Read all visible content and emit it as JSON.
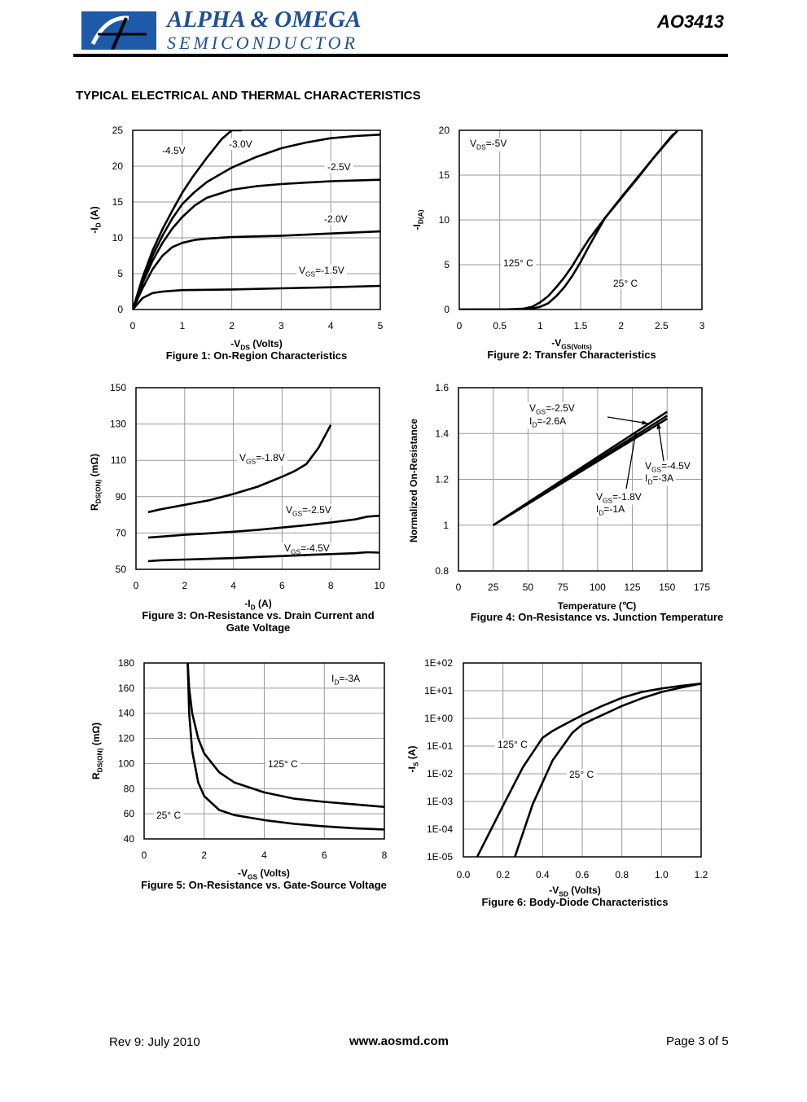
{
  "header": {
    "company_line1": "ALPHA & OMEGA",
    "company_line2": "SEMICONDUCTOR",
    "part_number": "AO3413",
    "logo_letter": "A",
    "brand_color": "#1e5aa8"
  },
  "section_title": "TYPICAL ELECTRICAL AND THERMAL CHARACTERISTICS",
  "footer": {
    "revision": "Rev 9: July 2010",
    "url": "www.aosmd.com",
    "page": "Page 3 of 5"
  },
  "chart_data": [
    {
      "type": "line",
      "caption": "Figure 1: On-Region Characteristics",
      "xlabel": "-V_DS (Volts)",
      "ylabel": "-I_D (A)",
      "xlim": [
        0,
        5
      ],
      "ylim": [
        0,
        25
      ],
      "xticks": [
        "0",
        "1",
        "2",
        "3",
        "4",
        "5"
      ],
      "yticks": [
        "0",
        "5",
        "10",
        "15",
        "20",
        "25"
      ],
      "grid": true,
      "series": [
        {
          "name": "-4.5V",
          "x": [
            0,
            0.2,
            0.4,
            0.6,
            0.8,
            1,
            1.2,
            1.5,
            1.8,
            2,
            2.2
          ],
          "y": [
            0,
            4.5,
            8.2,
            11.2,
            13.8,
            16.3,
            18.4,
            21.2,
            23.8,
            25.2,
            26.5
          ]
        },
        {
          "name": "-3.0V",
          "x": [
            0,
            0.2,
            0.4,
            0.6,
            0.8,
            1,
            1.25,
            1.5,
            2,
            2.5,
            3,
            3.5,
            4,
            4.5,
            5
          ],
          "y": [
            0,
            4,
            7.5,
            10.3,
            12.7,
            14.7,
            16.4,
            17.8,
            19.8,
            21.3,
            22.5,
            23.3,
            23.9,
            24.2,
            24.4
          ]
        },
        {
          "name": "-2.5V",
          "x": [
            0,
            0.2,
            0.4,
            0.6,
            0.8,
            1,
            1.25,
            1.5,
            2,
            2.5,
            3,
            3.5,
            4,
            4.5,
            5
          ],
          "y": [
            0,
            3.7,
            6.8,
            9.3,
            11.3,
            12.9,
            14.5,
            15.6,
            16.7,
            17.2,
            17.5,
            17.7,
            17.9,
            18,
            18.1
          ]
        },
        {
          "name": "-2.0V",
          "x": [
            0,
            0.2,
            0.4,
            0.6,
            0.8,
            1,
            1.25,
            1.5,
            2,
            2.5,
            3,
            4,
            5
          ],
          "y": [
            0,
            3,
            5.6,
            7.5,
            8.7,
            9.3,
            9.7,
            9.9,
            10.1,
            10.2,
            10.3,
            10.6,
            10.9
          ]
        },
        {
          "name": "V_GS=-1.5V",
          "x": [
            0,
            0.2,
            0.4,
            0.6,
            0.8,
            1,
            1.5,
            2,
            3,
            4,
            5
          ],
          "y": [
            0,
            1.6,
            2.3,
            2.5,
            2.6,
            2.7,
            2.75,
            2.8,
            2.95,
            3.1,
            3.3
          ]
        }
      ],
      "annotations": [
        "-4.5V",
        "-3.0V",
        "-2.5V",
        "-2.0V",
        "V_GS=-1.5V"
      ]
    },
    {
      "type": "line",
      "caption": "Figure 2: Transfer Characteristics",
      "xlabel": "-V_GS(Volts)",
      "ylabel": "-I_D(A)",
      "xlim": [
        0,
        3
      ],
      "ylim": [
        0,
        20
      ],
      "xticks": [
        "0",
        "0.5",
        "1",
        "1.5",
        "2",
        "2.5",
        "3"
      ],
      "yticks": [
        "0",
        "5",
        "10",
        "15",
        "20"
      ],
      "grid": true,
      "series": [
        {
          "name": "125° C",
          "x": [
            0,
            0.6,
            0.8,
            0.9,
            1,
            1.1,
            1.2,
            1.3,
            1.4,
            1.5,
            1.6,
            1.8,
            2,
            2.2,
            2.4,
            2.6,
            2.65
          ],
          "y": [
            0,
            0.02,
            0.1,
            0.3,
            0.8,
            1.5,
            2.5,
            3.6,
            4.9,
            6.4,
            7.8,
            10.2,
            12.4,
            14.6,
            16.9,
            19.1,
            19.6
          ]
        },
        {
          "name": "25° C",
          "x": [
            0,
            0.8,
            0.9,
            1,
            1.1,
            1.2,
            1.3,
            1.4,
            1.5,
            1.6,
            1.8,
            2,
            2.2,
            2.4,
            2.6,
            2.7
          ],
          "y": [
            0,
            0.01,
            0.1,
            0.3,
            0.7,
            1.5,
            2.5,
            3.8,
            5.3,
            7,
            10.2,
            12.5,
            14.7,
            16.9,
            19,
            20
          ]
        }
      ],
      "annotations": [
        "V_DS=-5V",
        "125° C",
        "25° C"
      ]
    },
    {
      "type": "line",
      "caption": "Figure 3: On-Resistance vs. Drain Current and Gate Voltage",
      "xlabel": "-I_D (A)",
      "ylabel": "R_DS(ON) (mΩ)",
      "xlim": [
        0,
        10
      ],
      "ylim": [
        50,
        150
      ],
      "xticks": [
        "0",
        "2",
        "4",
        "6",
        "8",
        "10"
      ],
      "yticks": [
        "50",
        "70",
        "90",
        "110",
        "130",
        "150"
      ],
      "grid": true,
      "series": [
        {
          "name": "V_GS=-1.8V",
          "x": [
            0.5,
            1,
            2,
            3,
            4,
            5,
            6,
            6.5,
            7,
            7.5,
            8
          ],
          "y": [
            81.5,
            83,
            85.5,
            88,
            91.5,
            95.5,
            101,
            104,
            108,
            117,
            129.5
          ]
        },
        {
          "name": "V_GS=-2.5V",
          "x": [
            0.5,
            1,
            2,
            3,
            4,
            5,
            6,
            7,
            8,
            9,
            9.5,
            10
          ],
          "y": [
            67.5,
            68,
            69,
            69.8,
            70.7,
            71.7,
            73,
            74.3,
            75.8,
            77.5,
            79,
            79.5
          ]
        },
        {
          "name": "V_GS=-4.5V",
          "x": [
            0.5,
            1,
            2,
            3,
            4,
            5,
            6,
            7,
            8,
            9,
            9.5,
            10
          ],
          "y": [
            54.5,
            55,
            55.4,
            55.8,
            56.2,
            56.8,
            57.3,
            57.9,
            58.4,
            58.9,
            59.4,
            59.2
          ]
        }
      ],
      "annotations": [
        "V_GS=-1.8V",
        "V_GS=-2.5V",
        "V_GS=-4.5V"
      ]
    },
    {
      "type": "line",
      "caption": "Figure 4: On-Resistance vs. Junction Temperature",
      "xlabel": "Temperature (℃)",
      "ylabel": "Normalized On-Resistance",
      "xlim": [
        0,
        175
      ],
      "ylim": [
        0.8,
        1.6
      ],
      "xticks": [
        "0",
        "25",
        "50",
        "75",
        "100",
        "125",
        "150",
        "175"
      ],
      "yticks": [
        "0.8",
        "1",
        "1.2",
        "1.4",
        "1.6"
      ],
      "grid": true,
      "series": [
        {
          "name": "V_GS=-2.5V, I_D=-2.6A",
          "x": [
            25,
            150
          ],
          "y": [
            1,
            1.495
          ]
        },
        {
          "name": "V_GS=-4.5V, I_D=-3A",
          "x": [
            25,
            150
          ],
          "y": [
            1,
            1.465
          ]
        },
        {
          "name": "V_GS=-1.8V, I_D=-1A",
          "x": [
            25,
            150
          ],
          "y": [
            1,
            1.478
          ]
        }
      ],
      "annotations": [
        "V_GS=-2.5V",
        "I_D=-2.6A",
        "V_GS=-4.5V",
        "I_D=-3A",
        "V_GS=-1.8V",
        "I_D=-1A"
      ]
    },
    {
      "type": "line",
      "caption": "Figure 5: On-Resistance vs. Gate-Source Voltage",
      "xlabel": "-V_GS (Volts)",
      "ylabel": "R_DS(ON) (mΩ)",
      "xlim": [
        0,
        8
      ],
      "ylim": [
        40,
        180
      ],
      "xticks": [
        "0",
        "2",
        "4",
        "6",
        "8"
      ],
      "yticks": [
        "40",
        "60",
        "80",
        "100",
        "120",
        "140",
        "160",
        "180"
      ],
      "grid": true,
      "series": [
        {
          "name": "125° C",
          "x": [
            1.45,
            1.5,
            1.6,
            1.8,
            2,
            2.5,
            3,
            4,
            5,
            6,
            7,
            8
          ],
          "y": [
            180,
            160,
            140,
            120,
            108,
            93,
            85,
            77,
            72,
            69.5,
            67.5,
            65.5
          ]
        },
        {
          "name": "25° C",
          "x": [
            1.45,
            1.5,
            1.6,
            1.8,
            2,
            2.5,
            3,
            4,
            5,
            6,
            7,
            8
          ],
          "y": [
            180,
            140,
            110,
            85,
            74,
            63,
            59,
            55,
            52,
            50,
            48.5,
            47.5
          ]
        }
      ],
      "annotations": [
        "I_D=-3A",
        "125° C",
        "25° C"
      ]
    },
    {
      "type": "line",
      "caption": "Figure 6: Body-Diode Characteristics",
      "xlabel": "-V_SD (Volts)",
      "ylabel": "-I_S (A)",
      "xlim": [
        0,
        1.2
      ],
      "ylim": [
        -5,
        2
      ],
      "yscale": "log",
      "xticks": [
        "0.0",
        "0.2",
        "0.4",
        "0.6",
        "0.8",
        "1.0",
        "1.2"
      ],
      "yticks": [
        "1E-05",
        "1E-04",
        "1E-03",
        "1E-02",
        "1E-01",
        "1E+00",
        "1E+01",
        "1E+02"
      ],
      "grid": true,
      "series": [
        {
          "name": "125° C",
          "x": [
            0.07,
            0.2,
            0.3,
            0.4,
            0.45,
            0.5,
            0.6,
            0.7,
            0.8,
            0.9,
            1.0,
            1.1,
            1.2
          ],
          "y": [
            1e-05,
            0.0007,
            0.017,
            0.2,
            0.35,
            0.55,
            1.3,
            2.8,
            5.5,
            9,
            12,
            15,
            18
          ]
        },
        {
          "name": "25° C",
          "x": [
            0.26,
            0.35,
            0.45,
            0.55,
            0.6,
            0.65,
            0.7,
            0.8,
            0.9,
            1.0,
            1.1,
            1.2
          ],
          "y": [
            1e-05,
            0.0008,
            0.03,
            0.3,
            0.6,
            0.9,
            1.3,
            2.8,
            5.3,
            9,
            13,
            18
          ]
        }
      ],
      "annotations": [
        "125° C",
        "25° C"
      ]
    }
  ]
}
